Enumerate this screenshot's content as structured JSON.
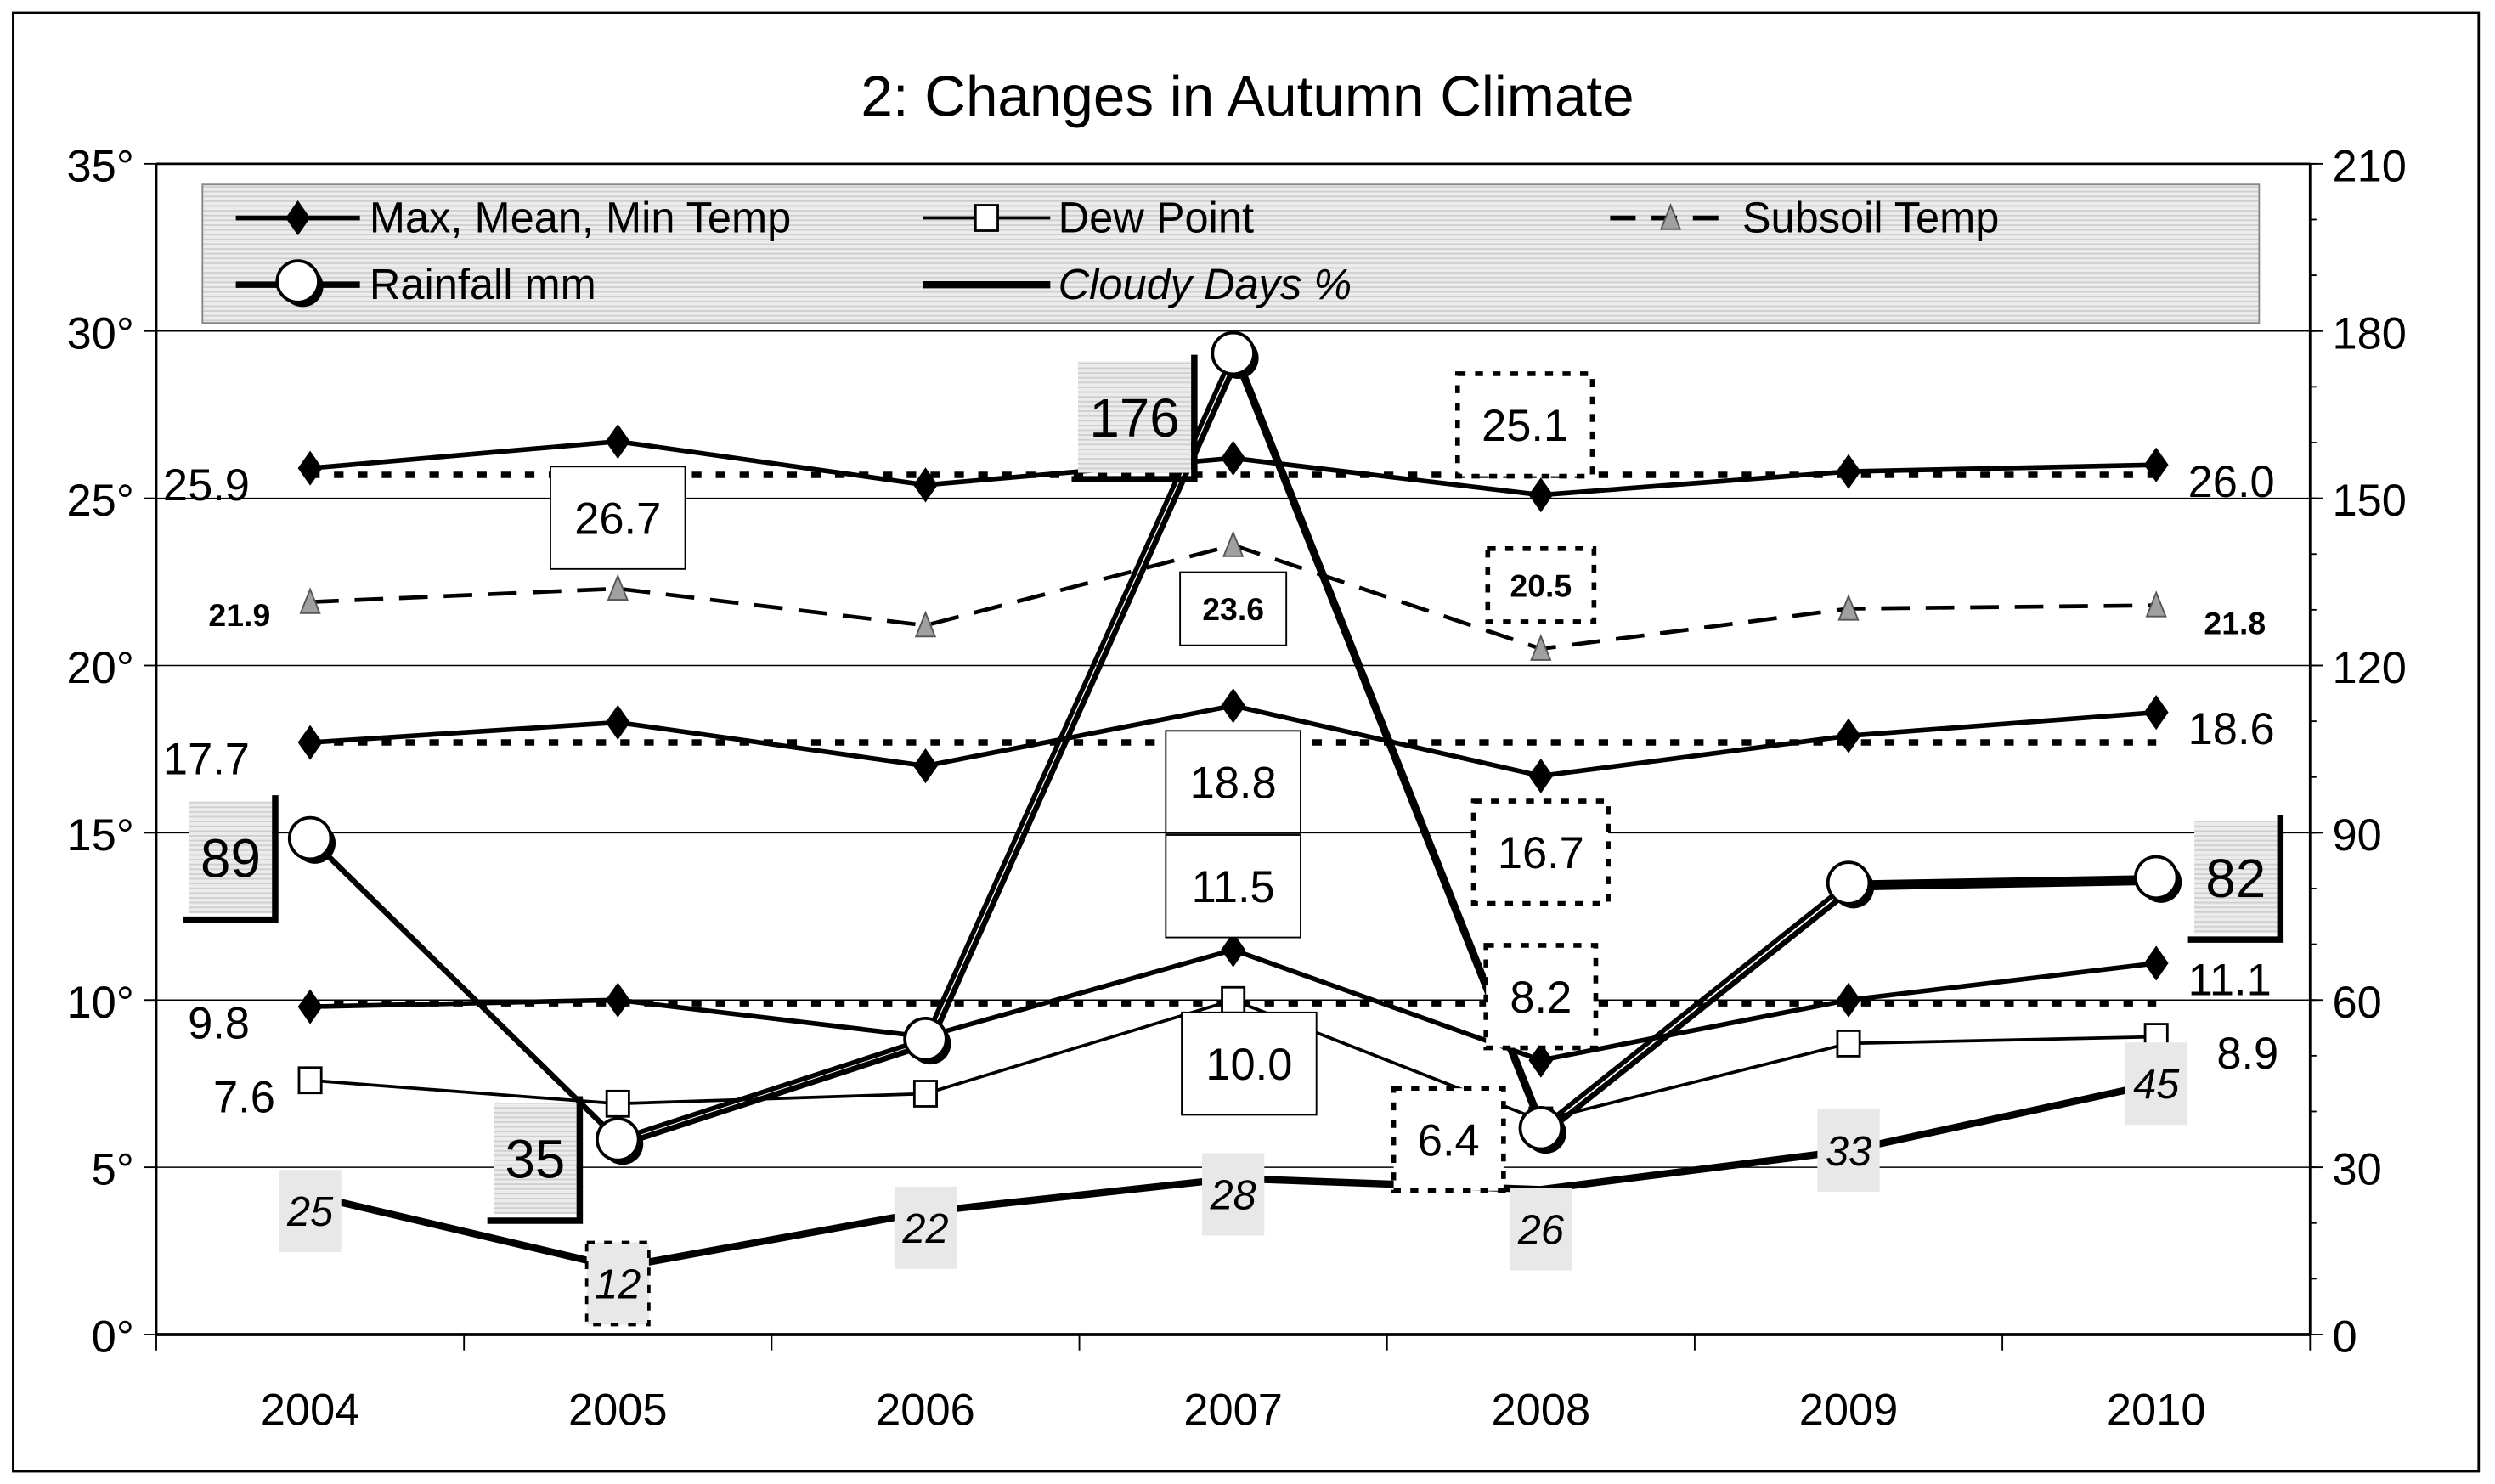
{
  "chart_data": {
    "type": "line",
    "title": "2: Changes in Autumn Climate",
    "categories": [
      "2004",
      "2005",
      "2006",
      "2007",
      "2008",
      "2009",
      "2010"
    ],
    "y_left": {
      "range": [
        0,
        35
      ],
      "ticks": [
        "0°",
        "5°",
        "10°",
        "15°",
        "20°",
        "25°",
        "30°",
        "35°"
      ]
    },
    "y_right": {
      "range": [
        0,
        210
      ],
      "ticks": [
        "0",
        "30",
        "60",
        "90",
        "120",
        "150",
        "180",
        "210"
      ]
    },
    "grid": true,
    "legend_placement": "top",
    "legend": {
      "temp": "Max, Mean, Min Temp",
      "dew": "Dew Point",
      "subsoil": "Subsoil Temp",
      "rain": "Rainfall mm",
      "cloudy": "Cloudy Days %"
    },
    "series": [
      {
        "name": "Max, Mean, Min Temp",
        "key": "max",
        "axis": "left",
        "values": [
          25.9,
          26.7,
          25.4,
          26.2,
          25.1,
          25.8,
          26.0
        ]
      },
      {
        "name": "Max, Mean, Min Temp",
        "key": "mean",
        "axis": "left",
        "values": [
          17.7,
          18.3,
          17.0,
          18.8,
          16.7,
          17.9,
          18.6
        ]
      },
      {
        "name": "Max, Mean, Min Temp",
        "key": "min",
        "axis": "left",
        "values": [
          9.8,
          10.0,
          8.9,
          11.5,
          8.2,
          10.0,
          11.1
        ]
      },
      {
        "name": "Dew Point",
        "key": "dew",
        "axis": "left",
        "values": [
          7.6,
          6.9,
          7.2,
          10.0,
          6.4,
          8.7,
          8.9
        ]
      },
      {
        "name": "Subsoil Temp",
        "key": "subsoil",
        "axis": "left",
        "values": [
          21.9,
          22.3,
          21.2,
          23.6,
          20.5,
          21.7,
          21.8
        ]
      },
      {
        "name": "Rainfall mm",
        "key": "rain",
        "axis": "right",
        "values": [
          89,
          35,
          53,
          176,
          37,
          81,
          82
        ]
      },
      {
        "name": "Cloudy Days %",
        "key": "cloudy",
        "axis": "right",
        "values": [
          25,
          12,
          22,
          28,
          26,
          33,
          45
        ]
      }
    ],
    "average_lines": [
      25.7,
      17.7,
      9.9
    ],
    "colors": {
      "line": "#000000",
      "legend_fill": "#e4e4e4",
      "label_fill": "#e8e8e8",
      "triangle": "#a0a0a0"
    }
  }
}
